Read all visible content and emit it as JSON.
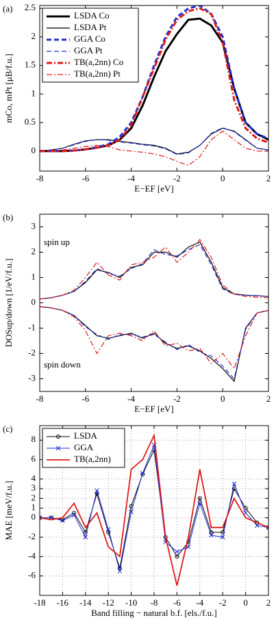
{
  "chart_data": [
    {
      "type": "line",
      "label": "(a)",
      "xlabel": "E−EF [eV]",
      "ylabel": "mCo, mPt [μB/f.u.]",
      "xlim": [
        -8,
        2
      ],
      "ylim": [
        -0.35,
        2.55
      ],
      "xticks": [
        -8,
        -6,
        -4,
        -2,
        0,
        2
      ],
      "yticks": [
        0,
        0.5,
        1,
        1.5,
        2,
        2.5
      ],
      "grid": false,
      "legend": "upper left",
      "x": [
        -8,
        -7.5,
        -7,
        -6.5,
        -6,
        -5.5,
        -5,
        -4.5,
        -4,
        -3.5,
        -3,
        -2.5,
        -2,
        -1.5,
        -1,
        -0.5,
        0,
        0.5,
        1,
        1.5,
        2
      ],
      "series": [
        {
          "name": "LSDA Co",
          "color": "#000000",
          "style": "solid",
          "width": 3,
          "values": [
            0,
            0,
            0,
            0.01,
            0.03,
            0.06,
            0.1,
            0.2,
            0.4,
            0.8,
            1.3,
            1.75,
            2.05,
            2.3,
            2.32,
            2.2,
            1.9,
            1.1,
            0.5,
            0.3,
            0.2
          ]
        },
        {
          "name": "LSDA Pt",
          "color": "#000000",
          "style": "solid",
          "width": 1.2,
          "values": [
            0,
            0.02,
            0.05,
            0.12,
            0.18,
            0.2,
            0.2,
            0.17,
            0.15,
            0.12,
            0.1,
            0.05,
            -0.05,
            -0.02,
            0.1,
            0.3,
            0.4,
            0.35,
            0.2,
            0.05,
            0.02
          ]
        },
        {
          "name": "GGA Co",
          "color": "#1f2bd6",
          "style": "dashed",
          "width": 3,
          "values": [
            0,
            0,
            0,
            0.01,
            0.03,
            0.07,
            0.12,
            0.25,
            0.5,
            0.95,
            1.5,
            2.0,
            2.35,
            2.5,
            2.55,
            2.4,
            2.0,
            1.1,
            0.5,
            0.3,
            0.22
          ]
        },
        {
          "name": "GGA Pt",
          "color": "#1f2bd6",
          "style": "dashed",
          "width": 1.2,
          "values": [
            0,
            0.02,
            0.05,
            0.11,
            0.17,
            0.2,
            0.19,
            0.16,
            0.14,
            0.11,
            0.09,
            0.04,
            -0.06,
            -0.03,
            0.1,
            0.31,
            0.41,
            0.34,
            0.19,
            0.05,
            0.02
          ]
        },
        {
          "name": "TB(a,2nn) Co",
          "color": "#e01818",
          "style": "dashdot",
          "width": 3,
          "values": [
            0,
            0,
            0,
            0.01,
            0.03,
            0.06,
            0.1,
            0.2,
            0.45,
            0.95,
            1.45,
            1.95,
            2.3,
            2.45,
            2.5,
            2.4,
            1.9,
            0.9,
            0.4,
            0.22,
            0.15
          ]
        },
        {
          "name": "TB(a,2nn) Pt",
          "color": "#e01818",
          "style": "dashdot",
          "width": 1.2,
          "values": [
            0,
            0,
            0.02,
            0.05,
            0.08,
            0.1,
            0.08,
            0.02,
            0,
            -0.02,
            -0.05,
            -0.1,
            -0.18,
            -0.25,
            -0.1,
            0.2,
            0.35,
            0.2,
            0.05,
            0,
            0
          ]
        }
      ]
    },
    {
      "type": "line",
      "label": "(b)",
      "xlabel": "E−EF [eV]",
      "ylabel": "DOSup/down [1/eV/f.u.]",
      "xlim": [
        -8,
        2
      ],
      "ylim": [
        -3.5,
        3.5
      ],
      "xticks": [
        -8,
        -6,
        -4,
        -2,
        0,
        2
      ],
      "yticks": [
        -3,
        -2,
        -1,
        0,
        1,
        2,
        3
      ],
      "grid": false,
      "annotations": [
        "spin up",
        "spin down"
      ],
      "x": [
        -8,
        -7.5,
        -7,
        -6.5,
        -6,
        -5.5,
        -5,
        -4.5,
        -4,
        -3.5,
        -3,
        -2.5,
        -2,
        -1.5,
        -1,
        -0.5,
        0,
        0.5,
        1,
        1.5,
        2
      ],
      "series": [
        {
          "color": "#000000",
          "style": "solid",
          "width": 1.2,
          "values": [
            0.15,
            0.2,
            0.3,
            0.45,
            0.8,
            1.3,
            1.2,
            1.0,
            1.4,
            1.5,
            2.0,
            2.0,
            1.8,
            2.2,
            2.4,
            1.6,
            0.6,
            0.35,
            0.3,
            0.28,
            0.25
          ]
        },
        {
          "color": "#000000",
          "style": "solid",
          "width": 1.2,
          "values": [
            -0.15,
            -0.2,
            -0.3,
            -0.5,
            -0.9,
            -1.3,
            -1.4,
            -1.3,
            -1.2,
            -1.4,
            -1.2,
            -1.6,
            -1.8,
            -1.7,
            -1.9,
            -2.2,
            -2.6,
            -3.1,
            -1.0,
            -0.4,
            -0.3
          ]
        },
        {
          "color": "#1f2bd6",
          "style": "dashed",
          "width": 1.2,
          "values": [
            0.15,
            0.2,
            0.3,
            0.45,
            0.85,
            1.35,
            1.15,
            1.05,
            1.35,
            1.55,
            2.1,
            1.9,
            1.85,
            2.1,
            2.3,
            1.5,
            0.55,
            0.33,
            0.3,
            0.28,
            0.25
          ]
        },
        {
          "color": "#1f2bd6",
          "style": "dashed",
          "width": 1.2,
          "values": [
            -0.15,
            -0.2,
            -0.3,
            -0.5,
            -0.95,
            -1.25,
            -1.45,
            -1.25,
            -1.25,
            -1.35,
            -1.25,
            -1.55,
            -1.85,
            -1.65,
            -1.95,
            -2.1,
            -2.5,
            -3.0,
            -1.05,
            -0.4,
            -0.3
          ]
        },
        {
          "color": "#e01818",
          "style": "dashdot",
          "width": 1.2,
          "values": [
            0.15,
            0.2,
            0.3,
            0.5,
            1.0,
            1.6,
            1.1,
            0.9,
            1.5,
            1.6,
            1.8,
            2.2,
            1.6,
            2.0,
            2.5,
            1.8,
            0.7,
            0.35,
            0.25,
            0.22,
            0.2
          ]
        },
        {
          "color": "#e01818",
          "style": "dashdot",
          "width": 1.2,
          "values": [
            -0.15,
            -0.2,
            -0.3,
            -0.55,
            -1.1,
            -2.0,
            -1.3,
            -1.2,
            -1.3,
            -1.5,
            -1.1,
            -1.7,
            -1.6,
            -1.9,
            -1.8,
            -2.4,
            -2.0,
            -2.6,
            -1.3,
            -0.4,
            -0.3
          ]
        }
      ]
    },
    {
      "type": "line",
      "label": "(c)",
      "xlabel": "Band filling − natural b.f. [els./f.u.]",
      "ylabel": "MAE [meV/f.u.]",
      "xlim": [
        -18,
        2
      ],
      "ylim": [
        -8,
        9.5
      ],
      "xticks": [
        -18,
        -16,
        -14,
        -12,
        -10,
        -8,
        -6,
        -4,
        -2,
        0,
        2
      ],
      "yticks": [
        -6,
        -4,
        -2,
        0,
        1,
        2,
        3,
        4,
        6,
        8
      ],
      "grid": true,
      "legend": "upper left",
      "x": [
        -18,
        -17,
        -16,
        -15,
        -14,
        -13,
        -12,
        -11,
        -10,
        -9,
        -8,
        -7,
        -6,
        -5,
        -4,
        -3,
        -2,
        -1,
        0,
        1,
        2
      ],
      "series": [
        {
          "name": "LSDA",
          "color": "#000000",
          "style": "solid",
          "width": 1,
          "marker": "o",
          "values": [
            0,
            0,
            -0.2,
            0.5,
            -1.5,
            2.5,
            -1.5,
            -5.2,
            1.2,
            4.5,
            7.0,
            -2.0,
            -4.0,
            -2.5,
            2.0,
            -1.5,
            -1.5,
            3.0,
            1.0,
            -0.5,
            -1.0
          ]
        },
        {
          "name": "GGA",
          "color": "#1f2bd6",
          "style": "solid",
          "width": 1,
          "marker": "x",
          "values": [
            0,
            0,
            -0.3,
            0.3,
            -2.0,
            2.8,
            -1.2,
            -5.5,
            0.6,
            4.6,
            7.5,
            -2.5,
            -3.5,
            -3.0,
            1.5,
            -1.8,
            -2.0,
            3.5,
            0.5,
            -0.8,
            -1.0
          ]
        },
        {
          "name": "TB(a,2nn)",
          "color": "#e01818",
          "style": "solid",
          "width": 1.8,
          "values": [
            0,
            -0.2,
            0,
            1.5,
            -1.0,
            0.5,
            -3.0,
            -4.0,
            5.0,
            6.0,
            8.5,
            -2.0,
            -7.0,
            -2.0,
            5.0,
            -1.0,
            -1.0,
            2.0,
            0,
            -0.5,
            -1.0
          ]
        }
      ]
    }
  ]
}
